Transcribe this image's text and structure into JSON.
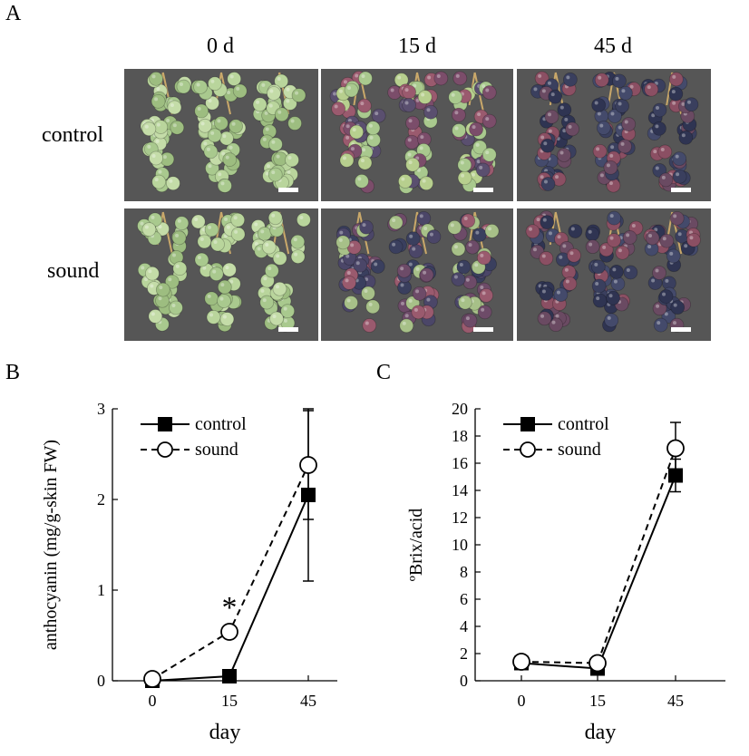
{
  "figure": {
    "panel_a": {
      "letter": "A",
      "columns": [
        "0 d",
        "15 d",
        "45 d"
      ],
      "rows": [
        "control",
        "sound"
      ],
      "photos": [
        {
          "row": "control",
          "day": "0 d",
          "ripeness": "green"
        },
        {
          "row": "control",
          "day": "15 d",
          "ripeness": "mixed"
        },
        {
          "row": "control",
          "day": "45 d",
          "ripeness": "dark"
        },
        {
          "row": "sound",
          "day": "0 d",
          "ripeness": "green"
        },
        {
          "row": "sound",
          "day": "15 d",
          "ripeness": "mostly-dark"
        },
        {
          "row": "sound",
          "day": "45 d",
          "ripeness": "dark"
        }
      ]
    },
    "panel_b": {
      "letter": "B"
    },
    "panel_c": {
      "letter": "C"
    }
  },
  "chart_data": [
    {
      "type": "line",
      "panel": "B",
      "xlabel": "day",
      "ylabel": "anthocyanin  (mg/g-skin FW)",
      "categories": [
        "0",
        "15",
        "45"
      ],
      "ylim": [
        0,
        3
      ],
      "yticks": [
        "0",
        "1",
        "2",
        "3"
      ],
      "series": [
        {
          "name": "control",
          "marker": "filled-square",
          "line": "solid",
          "values": [
            0.0,
            0.05,
            2.05
          ],
          "err": [
            0,
            0,
            0.95
          ]
        },
        {
          "name": "sound",
          "marker": "open-circle",
          "line": "dashed",
          "values": [
            0.02,
            0.54,
            2.38
          ],
          "err": [
            0,
            0,
            0.6
          ]
        }
      ],
      "annotations": [
        {
          "text": "*",
          "category": "15"
        }
      ],
      "legend": "top-left"
    },
    {
      "type": "line",
      "panel": "C",
      "xlabel": "day",
      "ylabel": "ºBrix/acid",
      "categories": [
        "0",
        "15",
        "45"
      ],
      "ylim": [
        0,
        20
      ],
      "yticks": [
        "0",
        "2",
        "4",
        "6",
        "8",
        "10",
        "12",
        "14",
        "16",
        "18",
        "20"
      ],
      "series": [
        {
          "name": "control",
          "marker": "filled-square",
          "line": "solid",
          "values": [
            1.3,
            0.9,
            15.1
          ],
          "err": [
            0,
            0,
            1.2
          ]
        },
        {
          "name": "sound",
          "marker": "open-circle",
          "line": "dashed",
          "values": [
            1.4,
            1.3,
            17.1
          ],
          "err": [
            0,
            0,
            1.9
          ]
        }
      ],
      "legend": "top-left"
    }
  ],
  "colors": {
    "photo_background": "#565656",
    "grape_green": "#a9c98e",
    "grape_red": "#9a5a6e",
    "grape_dark": "#3a3f5e",
    "stem": "#c9a86a"
  }
}
